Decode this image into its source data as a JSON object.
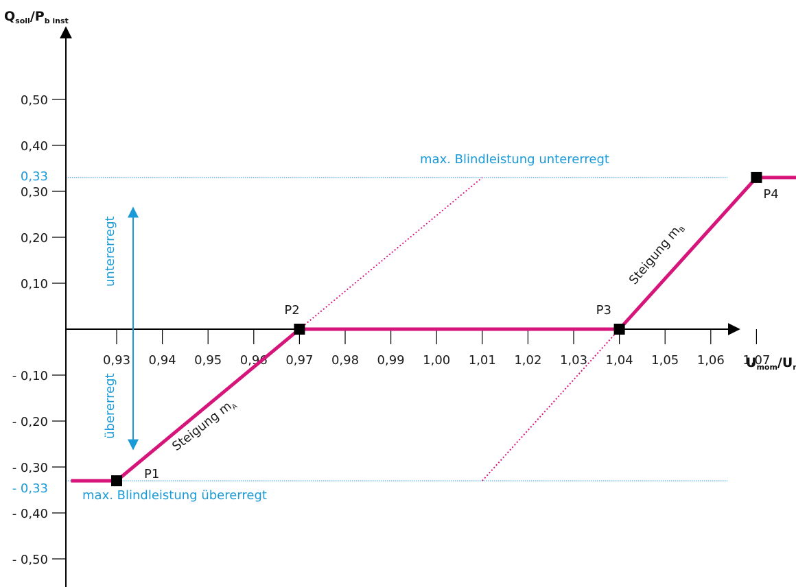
{
  "chart_data": {
    "type": "line",
    "xlabel": {
      "main": "U",
      "sub": "mom",
      "sep": "/U",
      "sub2": "n"
    },
    "ylabel": {
      "main": "Q",
      "sub": "soll",
      "sep": "/P",
      "sub2": "b inst"
    },
    "xlim": [
      0.92,
      1.08
    ],
    "ylim": [
      -0.55,
      0.55
    ],
    "x_ticks": [
      {
        "value": 0.93,
        "label": "0,93"
      },
      {
        "value": 0.94,
        "label": "0,94"
      },
      {
        "value": 0.95,
        "label": "0,95"
      },
      {
        "value": 0.96,
        "label": "0,96"
      },
      {
        "value": 0.97,
        "label": "0,97"
      },
      {
        "value": 0.98,
        "label": "0,98"
      },
      {
        "value": 0.99,
        "label": "0,99"
      },
      {
        "value": 1.0,
        "label": "1,00"
      },
      {
        "value": 1.01,
        "label": "1,01"
      },
      {
        "value": 1.02,
        "label": "1,02"
      },
      {
        "value": 1.03,
        "label": "1,03"
      },
      {
        "value": 1.04,
        "label": "1,04"
      },
      {
        "value": 1.05,
        "label": "1,05"
      },
      {
        "value": 1.06,
        "label": "1,06"
      },
      {
        "value": 1.07,
        "label": "1,07"
      }
    ],
    "y_ticks": [
      {
        "value": 0.5,
        "label": "0,50"
      },
      {
        "value": 0.4,
        "label": "0,40"
      },
      {
        "value": 0.3,
        "label": "0,30"
      },
      {
        "value": 0.2,
        "label": "0,20"
      },
      {
        "value": 0.1,
        "label": "0,10"
      },
      {
        "value": -0.1,
        "label": "- 0,10"
      },
      {
        "value": -0.2,
        "label": "- 0,20"
      },
      {
        "value": -0.3,
        "label": "- 0,30"
      },
      {
        "value": -0.4,
        "label": "- 0,40"
      },
      {
        "value": -0.5,
        "label": "- 0,50"
      }
    ],
    "limit_lines": [
      {
        "value": 0.33,
        "tick_label": "0,33",
        "label": "max. Blindleistung untererregt"
      },
      {
        "value": -0.33,
        "tick_label": "- 0,33",
        "label": "max. Blindleistung übererregt"
      }
    ],
    "series": [
      {
        "x": [
          0.92,
          0.93,
          0.97,
          1.04,
          1.07,
          1.08
        ],
        "y": [
          -0.33,
          -0.33,
          0.0,
          0.0,
          0.33,
          0.33
        ]
      }
    ],
    "dotted_lines": [
      {
        "x": [
          0.97,
          1.01
        ],
        "y": [
          0.0,
          0.33
        ]
      },
      {
        "x": [
          1.01,
          1.04
        ],
        "y": [
          -0.33,
          0.0
        ]
      }
    ],
    "points": [
      {
        "label": "P1",
        "x": 0.93,
        "y": -0.33
      },
      {
        "label": "P2",
        "x": 0.97,
        "y": 0.0
      },
      {
        "label": "P3",
        "x": 1.04,
        "y": 0.0
      },
      {
        "label": "P4",
        "x": 1.07,
        "y": 0.33
      }
    ],
    "slope_labels": [
      {
        "text": "Steigung m",
        "sub": "A"
      },
      {
        "text": "Steigung m",
        "sub": "B"
      }
    ],
    "arrow_labels": {
      "up": "untererregt",
      "down": "übererregt"
    },
    "colors": {
      "curve": "#d6157a",
      "limits": "#1a9ad6",
      "axis": "#000000",
      "dotted": "#d6157a"
    }
  }
}
